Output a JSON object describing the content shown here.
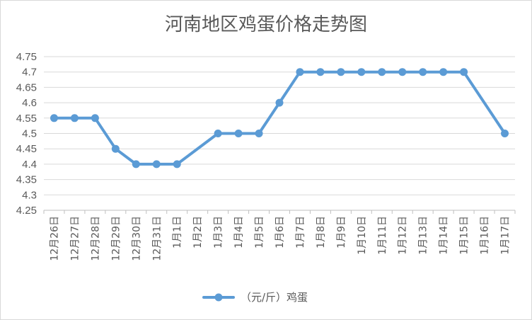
{
  "chart_data": {
    "type": "line",
    "title": "河南地区鸡蛋价格走势图",
    "xlabel": "",
    "ylabel": "",
    "ylim": [
      4.25,
      4.75
    ],
    "y_ticks": [
      "4.25",
      "4.3",
      "4.35",
      "4.4",
      "4.45",
      "4.5",
      "4.55",
      "4.6",
      "4.65",
      "4.7",
      "4.75"
    ],
    "categories": [
      "12月26日",
      "12月27日",
      "12月28日",
      "12月29日",
      "12月30日",
      "12月31日",
      "1月1日",
      "1月2日",
      "1月3日",
      "1月4日",
      "1月5日",
      "1月6日",
      "1月7日",
      "1月8日",
      "1月9日",
      "1月10日",
      "1月11日",
      "1月12日",
      "1月13日",
      "1月14日",
      "1月15日",
      "1月16日",
      "1月17日"
    ],
    "series": [
      {
        "name": "（元/斤）鸡蛋",
        "color": "#5b9bd5",
        "values": [
          4.55,
          4.55,
          4.55,
          4.45,
          4.4,
          4.4,
          4.4,
          null,
          4.5,
          4.5,
          4.5,
          4.6,
          4.7,
          4.7,
          4.7,
          4.7,
          4.7,
          4.7,
          4.7,
          4.7,
          4.7,
          null,
          4.5
        ]
      }
    ],
    "grid": true,
    "legend": "bottom"
  }
}
